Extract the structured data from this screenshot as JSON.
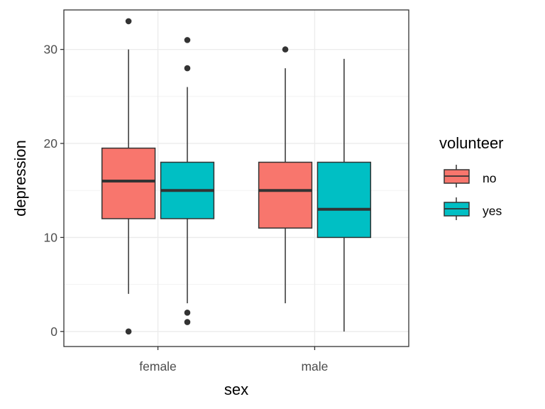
{
  "chart_data": {
    "type": "boxplot",
    "title": "",
    "xlabel": "sex",
    "ylabel": "depression",
    "categories": [
      "female",
      "male"
    ],
    "ylim": [
      -1.6,
      34.2
    ],
    "yticks": [
      0,
      10,
      20,
      30
    ],
    "ytick_labels": [
      "0",
      "10",
      "20",
      "30"
    ],
    "grid": true,
    "legend": {
      "title": "volunteer",
      "position": "right",
      "entries": [
        {
          "label": "no",
          "color": "#F8766D"
        },
        {
          "label": "yes",
          "color": "#00BFC4"
        }
      ]
    },
    "series": [
      {
        "name": "no",
        "color": "#F8766D",
        "boxes": [
          {
            "category": "female",
            "lower_whisker": 4,
            "q1": 12,
            "median": 16,
            "q3": 19.5,
            "upper_whisker": 30,
            "outliers": [
              33,
              0
            ]
          },
          {
            "category": "male",
            "lower_whisker": 3,
            "q1": 11,
            "median": 15,
            "q3": 18,
            "upper_whisker": 28,
            "outliers": [
              30
            ]
          }
        ]
      },
      {
        "name": "yes",
        "color": "#00BFC4",
        "boxes": [
          {
            "category": "female",
            "lower_whisker": 3,
            "q1": 12,
            "median": 15,
            "q3": 18,
            "upper_whisker": 26,
            "outliers": [
              31,
              28,
              2,
              1
            ]
          },
          {
            "category": "male",
            "lower_whisker": 0,
            "q1": 10,
            "median": 13,
            "q3": 18,
            "upper_whisker": 29,
            "outliers": []
          }
        ]
      }
    ]
  }
}
